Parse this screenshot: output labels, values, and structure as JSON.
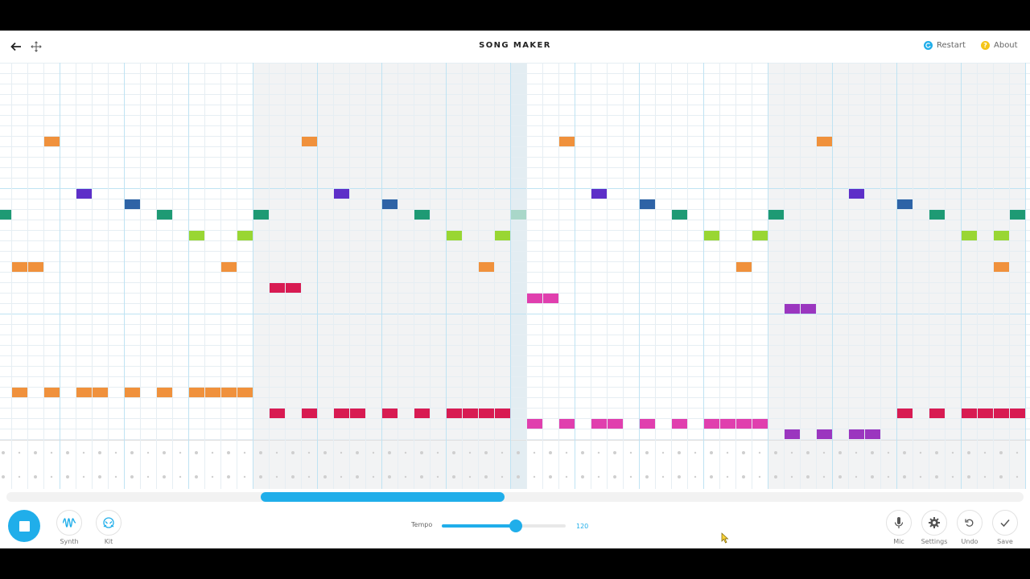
{
  "header": {
    "title": "SONG MAKER",
    "restart_label": "Restart",
    "about_label": "About",
    "back_icon": "arrow-left-icon",
    "fullscreen_icon": "move-arrows-icon",
    "restart_icon": "restart-icon",
    "about_icon": "question-icon"
  },
  "colors": {
    "accent": "#20aeea",
    "restart_dot": "#20aeea",
    "about_dot": "#f5c518",
    "notes": {
      "orange": "#f0913c",
      "purple": "#5d2fc8",
      "blue": "#2e63a6",
      "teal": "#1e9a74",
      "lime": "#99d633",
      "crimson": "#d81b52",
      "pink": "#e03fae",
      "violet": "#9b36bf"
    }
  },
  "grid": {
    "columns": 64,
    "melody_rows": 36,
    "rows_per_octave": 12,
    "beats_per_bar": 4,
    "shaded_bars": [
      4,
      5,
      6,
      7,
      12,
      13,
      14,
      15
    ],
    "highlighted_column": 32,
    "melody_notes": [
      {
        "row": 7,
        "cols": [
          3,
          19,
          35,
          51
        ],
        "color": "orange"
      },
      {
        "row": 12,
        "cols": [
          5,
          21,
          37,
          53
        ],
        "color": "purple"
      },
      {
        "row": 13,
        "cols": [
          8,
          24,
          40,
          56
        ],
        "color": "blue"
      },
      {
        "row": 14,
        "cols": [
          0,
          10,
          16,
          26,
          42,
          48,
          58,
          63
        ],
        "color": "teal"
      },
      {
        "row": 14,
        "cols": [
          32
        ],
        "color": "teal-faded"
      },
      {
        "row": 16,
        "cols": [
          12,
          15,
          28,
          31,
          44,
          47,
          60,
          62
        ],
        "color": "lime"
      },
      {
        "row": 19,
        "cols": [
          1,
          2,
          14,
          30,
          46,
          62
        ],
        "color": "orange"
      },
      {
        "row": 21,
        "cols": [
          17,
          18
        ],
        "color": "crimson"
      },
      {
        "row": 22,
        "cols": [
          33,
          34
        ],
        "color": "pink"
      },
      {
        "row": 23,
        "cols": [
          49,
          50
        ],
        "color": "violet"
      },
      {
        "row": 31,
        "cols": [
          1,
          3,
          5,
          6,
          8,
          10,
          12,
          13,
          14,
          15
        ],
        "color": "orange"
      },
      {
        "row": 33,
        "cols": [
          17,
          19,
          21,
          22,
          24,
          26,
          28,
          29,
          30,
          31,
          56,
          58,
          60,
          61,
          62,
          63
        ],
        "color": "crimson"
      },
      {
        "row": 34,
        "cols": [
          33,
          35,
          37,
          38,
          40,
          42,
          44,
          45,
          46,
          47
        ],
        "color": "pink"
      },
      {
        "row": 35,
        "cols": [
          49,
          51,
          53,
          54
        ],
        "color": "violet"
      }
    ]
  },
  "scrollbar": {
    "position": 0.25,
    "visible_fraction": 0.24
  },
  "controls": {
    "play_state": "playing",
    "stop_icon": "stop-icon",
    "synth_label": "Synth",
    "synth_icon": "waveform-icon",
    "kit_label": "Kit",
    "kit_icon": "drum-icon",
    "tempo_label": "Tempo",
    "tempo_value": "120",
    "tempo_fraction": 0.6,
    "mic_label": "Mic",
    "mic_icon": "microphone-icon",
    "settings_label": "Settings",
    "settings_icon": "gear-icon",
    "undo_label": "Undo",
    "undo_icon": "undo-icon",
    "save_label": "Save",
    "save_icon": "check-icon"
  }
}
